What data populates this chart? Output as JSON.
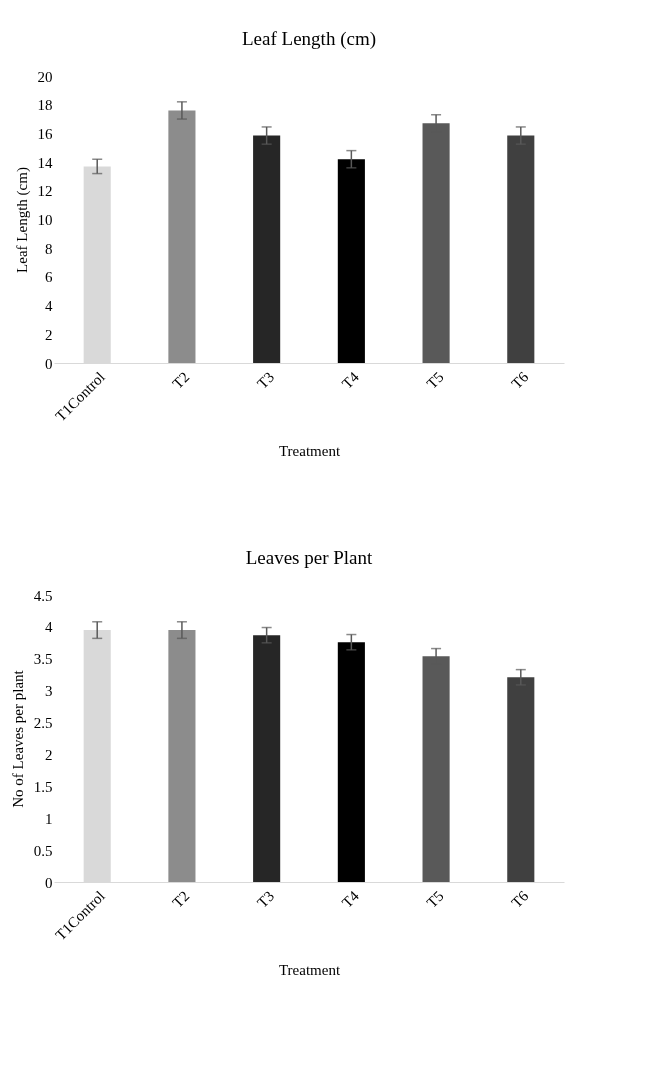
{
  "chart_data": [
    {
      "type": "bar",
      "title": "Leaf Length (cm)",
      "xlabel": "Treatment",
      "ylabel": "Leaf Length (cm)",
      "categories": [
        "T1Control",
        "T2",
        "T3",
        "T4",
        "T5",
        "T6"
      ],
      "values": [
        13.7,
        17.6,
        15.85,
        14.2,
        16.7,
        15.85
      ],
      "errors": [
        0.5,
        0.6,
        0.6,
        0.6,
        0.6,
        0.6
      ],
      "colors": [
        "#d9d9d9",
        "#8c8c8c",
        "#262626",
        "#000000",
        "#595959",
        "#404040"
      ],
      "ylim": [
        0,
        20
      ],
      "yticks": [
        0,
        2,
        4,
        6,
        8,
        10,
        12,
        14,
        16,
        18,
        20
      ]
    },
    {
      "type": "bar",
      "title": "Leaves per Plant",
      "xlabel": "Treatment",
      "ylabel": "No of Leaves per plant",
      "categories": [
        "T1Control",
        "T2",
        "T3",
        "T4",
        "T5",
        "T6"
      ],
      "values": [
        3.95,
        3.95,
        3.87,
        3.76,
        3.54,
        3.21
      ],
      "errors": [
        0.13,
        0.13,
        0.12,
        0.12,
        0.12,
        0.12
      ],
      "colors": [
        "#d9d9d9",
        "#8c8c8c",
        "#262626",
        "#000000",
        "#595959",
        "#404040"
      ],
      "ylim": [
        0,
        4.5
      ],
      "yticks": [
        0,
        0.5,
        1,
        1.5,
        2,
        2.5,
        3,
        3.5,
        4,
        4.5
      ]
    }
  ]
}
